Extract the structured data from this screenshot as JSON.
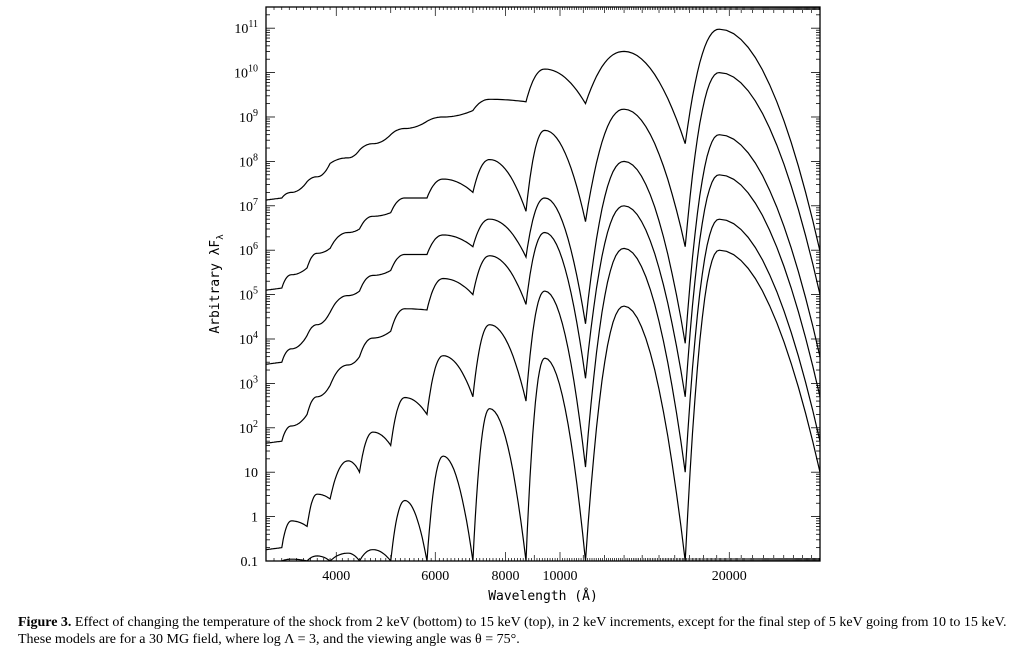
{
  "chart_data": {
    "type": "line",
    "xlabel": "Wavelength (Å)",
    "ylabel": "Arbitrary λF",
    "ylabel_sub": "λ",
    "x_scale": "log",
    "y_scale": "log",
    "xlim": [
      3000,
      29000
    ],
    "ylim": [
      0.1,
      300000000000
    ],
    "x_ticks": [
      {
        "value": 4000,
        "label": "4000"
      },
      {
        "value": 6000,
        "label": "6000"
      },
      {
        "value": 8000,
        "label": "8000"
      },
      {
        "value": 10000,
        "label": "10000"
      },
      {
        "value": 20000,
        "label": "20000"
      }
    ],
    "y_ticks": [
      {
        "value": 0.1,
        "base": "0.1",
        "exp": ""
      },
      {
        "value": 1,
        "base": "1",
        "exp": ""
      },
      {
        "value": 10,
        "base": "10",
        "exp": ""
      },
      {
        "value": 100,
        "base": "10",
        "exp": "2"
      },
      {
        "value": 1000,
        "base": "10",
        "exp": "3"
      },
      {
        "value": 10000,
        "base": "10",
        "exp": "4"
      },
      {
        "value": 100000,
        "base": "10",
        "exp": "5"
      },
      {
        "value": 1000000,
        "base": "10",
        "exp": "6"
      },
      {
        "value": 10000000,
        "base": "10",
        "exp": "7"
      },
      {
        "value": 100000000,
        "base": "10",
        "exp": "8"
      },
      {
        "value": 1000000000,
        "base": "10",
        "exp": "9"
      },
      {
        "value": 10000000000,
        "base": "10",
        "exp": "10"
      },
      {
        "value": 100000000000,
        "base": "10",
        "exp": "11"
      }
    ],
    "harmonic_minima": [
      3200,
      3550,
      3900,
      4400,
      5000,
      5800,
      7000,
      8700,
      11100,
      16700
    ],
    "series": [
      {
        "peak_wavelengths": [
          3330,
          3700,
          4200,
          4650,
          5300,
          6200,
          7500,
          9400,
          13000,
          19200
        ],
        "peaks": [
          0.11,
          0.13,
          0.15,
          0.18,
          2.3,
          23,
          270,
          3700,
          55000,
          1000000
        ],
        "minima": [
          0.1,
          0.1,
          0.1,
          0.1,
          0.1,
          0.1,
          0.1,
          0.1,
          0.1,
          0.1
        ]
      },
      {
        "peak_wavelengths": [
          3330,
          3700,
          4200,
          4650,
          5300,
          6200,
          7500,
          9400,
          13000,
          19200
        ],
        "peaks": [
          0.8,
          3.2,
          18,
          80,
          480,
          4200,
          21000,
          120000,
          1100000,
          5000000
        ],
        "minima": [
          0.2,
          0.6,
          2.5,
          10,
          40,
          200,
          500,
          400,
          13,
          10
        ]
      },
      {
        "peak_wavelengths": [
          3330,
          3700,
          4200,
          4650,
          5300,
          6200,
          7500,
          9400,
          13000,
          19200
        ],
        "peaks": [
          110,
          500,
          2600,
          10500,
          48000,
          230000,
          750000,
          2500000,
          10000000,
          50000000
        ],
        "minima": [
          50,
          200,
          900,
          4000,
          15000,
          45000,
          100000,
          60000,
          1300,
          500
        ]
      },
      {
        "peak_wavelengths": [
          3330,
          3700,
          4200,
          4650,
          5300,
          6200,
          7500,
          9400,
          13000,
          19200
        ],
        "peaks": [
          6000,
          21000,
          95000,
          270000,
          800000,
          2200000,
          5000000,
          15000000,
          100000000,
          400000000
        ],
        "minima": [
          3000,
          12000,
          40000,
          120000,
          350000,
          800000,
          1200000,
          700000,
          22000,
          8000
        ]
      },
      {
        "peak_wavelengths": [
          3330,
          3700,
          4200,
          4650,
          5300,
          6200,
          7500,
          9400,
          13000,
          19200
        ],
        "peaks": [
          280000,
          850000,
          2500000,
          5800000,
          15000000,
          40000000,
          110000000,
          500000000,
          1500000000,
          10000000000
        ],
        "minima": [
          140000,
          400000,
          1100000,
          3000000,
          7000000,
          15000000,
          20000000,
          7500000,
          4400000,
          1200000
        ]
      },
      {
        "peak_wavelengths": [
          3330,
          3700,
          4200,
          4650,
          5300,
          6200,
          7500,
          9400,
          13000,
          19200
        ],
        "peaks": [
          20000000,
          45000000,
          120000000,
          250000000,
          550000000,
          1000000000,
          2500000000,
          12000000000,
          30000000000,
          95000000000
        ],
        "minima": [
          15000000,
          35000000,
          90000000,
          180000000,
          400000000,
          800000000,
          1400000000,
          2200000000,
          2000000000,
          250000000
        ]
      }
    ]
  },
  "caption": {
    "label": "Figure 3.",
    "text": "Effect of changing the temperature of the shock from 2 keV (bottom) to 15 keV (top), in 2 keV increments, except for the final step of 5 keV going from 10 to 15 keV. These models are for a 30 MG field, where log Λ = 3, and the viewing angle was θ = 75°."
  }
}
